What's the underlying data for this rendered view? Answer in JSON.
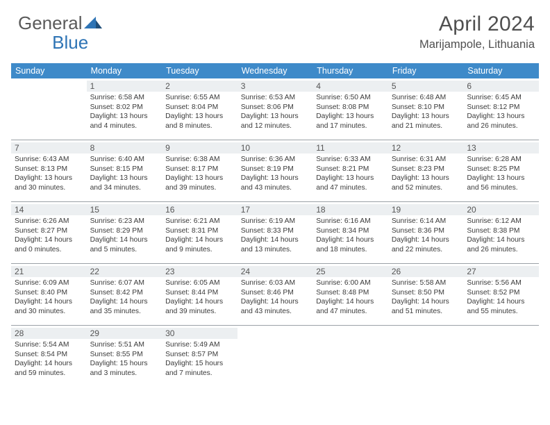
{
  "brand": {
    "part1": "General",
    "part2": "Blue",
    "color1": "#5a5a5a",
    "color2": "#2e74b5"
  },
  "title": "April 2024",
  "location": "Marijampole, Lithuania",
  "headerRow": {
    "bg": "#3e8ac9",
    "fg": "#ffffff"
  },
  "dayStrip": {
    "bg": "#eceff1"
  },
  "daysOfWeek": [
    "Sunday",
    "Monday",
    "Tuesday",
    "Wednesday",
    "Thursday",
    "Friday",
    "Saturday"
  ],
  "weeks": [
    [
      null,
      {
        "n": "1",
        "sr": "Sunrise: 6:58 AM",
        "ss": "Sunset: 8:02 PM",
        "d1": "Daylight: 13 hours",
        "d2": "and 4 minutes."
      },
      {
        "n": "2",
        "sr": "Sunrise: 6:55 AM",
        "ss": "Sunset: 8:04 PM",
        "d1": "Daylight: 13 hours",
        "d2": "and 8 minutes."
      },
      {
        "n": "3",
        "sr": "Sunrise: 6:53 AM",
        "ss": "Sunset: 8:06 PM",
        "d1": "Daylight: 13 hours",
        "d2": "and 12 minutes."
      },
      {
        "n": "4",
        "sr": "Sunrise: 6:50 AM",
        "ss": "Sunset: 8:08 PM",
        "d1": "Daylight: 13 hours",
        "d2": "and 17 minutes."
      },
      {
        "n": "5",
        "sr": "Sunrise: 6:48 AM",
        "ss": "Sunset: 8:10 PM",
        "d1": "Daylight: 13 hours",
        "d2": "and 21 minutes."
      },
      {
        "n": "6",
        "sr": "Sunrise: 6:45 AM",
        "ss": "Sunset: 8:12 PM",
        "d1": "Daylight: 13 hours",
        "d2": "and 26 minutes."
      }
    ],
    [
      {
        "n": "7",
        "sr": "Sunrise: 6:43 AM",
        "ss": "Sunset: 8:13 PM",
        "d1": "Daylight: 13 hours",
        "d2": "and 30 minutes."
      },
      {
        "n": "8",
        "sr": "Sunrise: 6:40 AM",
        "ss": "Sunset: 8:15 PM",
        "d1": "Daylight: 13 hours",
        "d2": "and 34 minutes."
      },
      {
        "n": "9",
        "sr": "Sunrise: 6:38 AM",
        "ss": "Sunset: 8:17 PM",
        "d1": "Daylight: 13 hours",
        "d2": "and 39 minutes."
      },
      {
        "n": "10",
        "sr": "Sunrise: 6:36 AM",
        "ss": "Sunset: 8:19 PM",
        "d1": "Daylight: 13 hours",
        "d2": "and 43 minutes."
      },
      {
        "n": "11",
        "sr": "Sunrise: 6:33 AM",
        "ss": "Sunset: 8:21 PM",
        "d1": "Daylight: 13 hours",
        "d2": "and 47 minutes."
      },
      {
        "n": "12",
        "sr": "Sunrise: 6:31 AM",
        "ss": "Sunset: 8:23 PM",
        "d1": "Daylight: 13 hours",
        "d2": "and 52 minutes."
      },
      {
        "n": "13",
        "sr": "Sunrise: 6:28 AM",
        "ss": "Sunset: 8:25 PM",
        "d1": "Daylight: 13 hours",
        "d2": "and 56 minutes."
      }
    ],
    [
      {
        "n": "14",
        "sr": "Sunrise: 6:26 AM",
        "ss": "Sunset: 8:27 PM",
        "d1": "Daylight: 14 hours",
        "d2": "and 0 minutes."
      },
      {
        "n": "15",
        "sr": "Sunrise: 6:23 AM",
        "ss": "Sunset: 8:29 PM",
        "d1": "Daylight: 14 hours",
        "d2": "and 5 minutes."
      },
      {
        "n": "16",
        "sr": "Sunrise: 6:21 AM",
        "ss": "Sunset: 8:31 PM",
        "d1": "Daylight: 14 hours",
        "d2": "and 9 minutes."
      },
      {
        "n": "17",
        "sr": "Sunrise: 6:19 AM",
        "ss": "Sunset: 8:33 PM",
        "d1": "Daylight: 14 hours",
        "d2": "and 13 minutes."
      },
      {
        "n": "18",
        "sr": "Sunrise: 6:16 AM",
        "ss": "Sunset: 8:34 PM",
        "d1": "Daylight: 14 hours",
        "d2": "and 18 minutes."
      },
      {
        "n": "19",
        "sr": "Sunrise: 6:14 AM",
        "ss": "Sunset: 8:36 PM",
        "d1": "Daylight: 14 hours",
        "d2": "and 22 minutes."
      },
      {
        "n": "20",
        "sr": "Sunrise: 6:12 AM",
        "ss": "Sunset: 8:38 PM",
        "d1": "Daylight: 14 hours",
        "d2": "and 26 minutes."
      }
    ],
    [
      {
        "n": "21",
        "sr": "Sunrise: 6:09 AM",
        "ss": "Sunset: 8:40 PM",
        "d1": "Daylight: 14 hours",
        "d2": "and 30 minutes."
      },
      {
        "n": "22",
        "sr": "Sunrise: 6:07 AM",
        "ss": "Sunset: 8:42 PM",
        "d1": "Daylight: 14 hours",
        "d2": "and 35 minutes."
      },
      {
        "n": "23",
        "sr": "Sunrise: 6:05 AM",
        "ss": "Sunset: 8:44 PM",
        "d1": "Daylight: 14 hours",
        "d2": "and 39 minutes."
      },
      {
        "n": "24",
        "sr": "Sunrise: 6:03 AM",
        "ss": "Sunset: 8:46 PM",
        "d1": "Daylight: 14 hours",
        "d2": "and 43 minutes."
      },
      {
        "n": "25",
        "sr": "Sunrise: 6:00 AM",
        "ss": "Sunset: 8:48 PM",
        "d1": "Daylight: 14 hours",
        "d2": "and 47 minutes."
      },
      {
        "n": "26",
        "sr": "Sunrise: 5:58 AM",
        "ss": "Sunset: 8:50 PM",
        "d1": "Daylight: 14 hours",
        "d2": "and 51 minutes."
      },
      {
        "n": "27",
        "sr": "Sunrise: 5:56 AM",
        "ss": "Sunset: 8:52 PM",
        "d1": "Daylight: 14 hours",
        "d2": "and 55 minutes."
      }
    ],
    [
      {
        "n": "28",
        "sr": "Sunrise: 5:54 AM",
        "ss": "Sunset: 8:54 PM",
        "d1": "Daylight: 14 hours",
        "d2": "and 59 minutes."
      },
      {
        "n": "29",
        "sr": "Sunrise: 5:51 AM",
        "ss": "Sunset: 8:55 PM",
        "d1": "Daylight: 15 hours",
        "d2": "and 3 minutes."
      },
      {
        "n": "30",
        "sr": "Sunrise: 5:49 AM",
        "ss": "Sunset: 8:57 PM",
        "d1": "Daylight: 15 hours",
        "d2": "and 7 minutes."
      },
      null,
      null,
      null,
      null
    ]
  ]
}
